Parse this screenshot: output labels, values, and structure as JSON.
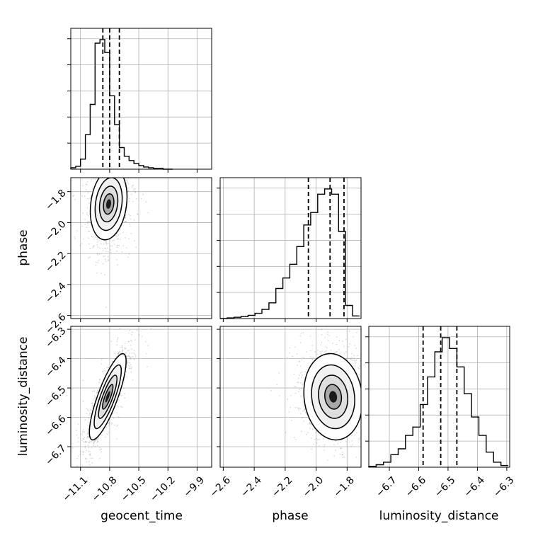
{
  "chart_data": {
    "type": "corner",
    "parameters": [
      "geocent_time",
      "phase",
      "luminosity_distance"
    ],
    "axis_labels": {
      "x": [
        "geocent_time",
        "phase",
        "luminosity_distance"
      ],
      "y": [
        "",
        "phase",
        "luminosity_distance"
      ]
    },
    "ranges": {
      "geocent_time": [
        -11.2,
        -9.75
      ],
      "phase": [
        -2.62,
        -1.71
      ],
      "luminosity_distance": [
        -6.77,
        -6.29
      ]
    },
    "ticks": {
      "geocent_time": [
        -11.1,
        -10.8,
        -10.5,
        -10.2,
        -9.9
      ],
      "phase": [
        -2.6,
        -2.4,
        -2.2,
        -2.0,
        -1.8
      ],
      "luminosity_distance": [
        -6.7,
        -6.6,
        -6.5,
        -6.4,
        -6.3
      ]
    },
    "tick_labels": {
      "geocent_time": [
        "−11.1",
        "−10.8",
        "−10.5",
        "−10.2",
        "−9.9"
      ],
      "phase": [
        "−2.6",
        "−2.4",
        "−2.2",
        "−2.0",
        "−1.8"
      ],
      "luminosity_distance": [
        "−6.7",
        "−6.6",
        "−6.5",
        "−6.4",
        "−6.3"
      ]
    },
    "quantiles": {
      "geocent_time": [
        -10.87,
        -10.8,
        -10.7
      ],
      "phase": [
        -2.05,
        -1.91,
        -1.82
      ],
      "luminosity_distance": [
        -6.585,
        -6.525,
        -6.47
      ]
    },
    "histograms": {
      "geocent_time": {
        "bins": [
          -11.2,
          -11.15,
          -11.1,
          -11.05,
          -11.0,
          -10.95,
          -10.9,
          -10.85,
          -10.8,
          -10.75,
          -10.7,
          -10.65,
          -10.6,
          -10.55,
          -10.5,
          -10.45,
          -10.4,
          -10.35,
          -10.3,
          -10.25,
          -10.2,
          -10.15
        ],
        "counts": [
          2,
          4,
          14,
          48,
          90,
          175,
          180,
          162,
          102,
          62,
          30,
          18,
          12,
          8,
          5,
          3,
          2,
          1,
          1,
          0,
          0
        ]
      },
      "phase": {
        "bins": [
          -2.62,
          -2.575,
          -2.53,
          -2.485,
          -2.44,
          -2.395,
          -2.35,
          -2.305,
          -2.26,
          -2.215,
          -2.17,
          -2.125,
          -2.08,
          -2.035,
          -1.99,
          -1.945,
          -1.9,
          -1.855,
          -1.81,
          -1.765,
          -1.72
        ],
        "counts": [
          0,
          1,
          2,
          3,
          5,
          8,
          14,
          24,
          46,
          62,
          83,
          110,
          143,
          162,
          190,
          198,
          190,
          133,
          20,
          4
        ]
      },
      "luminosity_distance": {
        "bins": [
          -6.77,
          -6.745,
          -6.72,
          -6.695,
          -6.67,
          -6.645,
          -6.62,
          -6.595,
          -6.57,
          -6.545,
          -6.52,
          -6.495,
          -6.47,
          -6.445,
          -6.42,
          -6.395,
          -6.37,
          -6.345,
          -6.32,
          -6.295
        ],
        "counts": [
          1,
          3,
          6,
          15,
          22,
          38,
          48,
          75,
          108,
          138,
          155,
          142,
          120,
          88,
          60,
          38,
          18,
          6,
          2
        ]
      }
    },
    "density_2d": {
      "phase_vs_geocent_time": {
        "x_center": -10.81,
        "y_center": -1.88,
        "sx": 0.09,
        "sy": 0.11,
        "corr": 0.2
      },
      "luminosity_distance_vs_geocent_time": {
        "x_center": -10.82,
        "y_center": -6.53,
        "sx": 0.09,
        "sy": 0.07,
        "corr": 0.82
      },
      "luminosity_distance_vs_phase": {
        "x_center": -1.89,
        "y_center": -6.53,
        "sx": 0.09,
        "sy": 0.07,
        "corr": -0.1
      }
    },
    "grid": true
  }
}
